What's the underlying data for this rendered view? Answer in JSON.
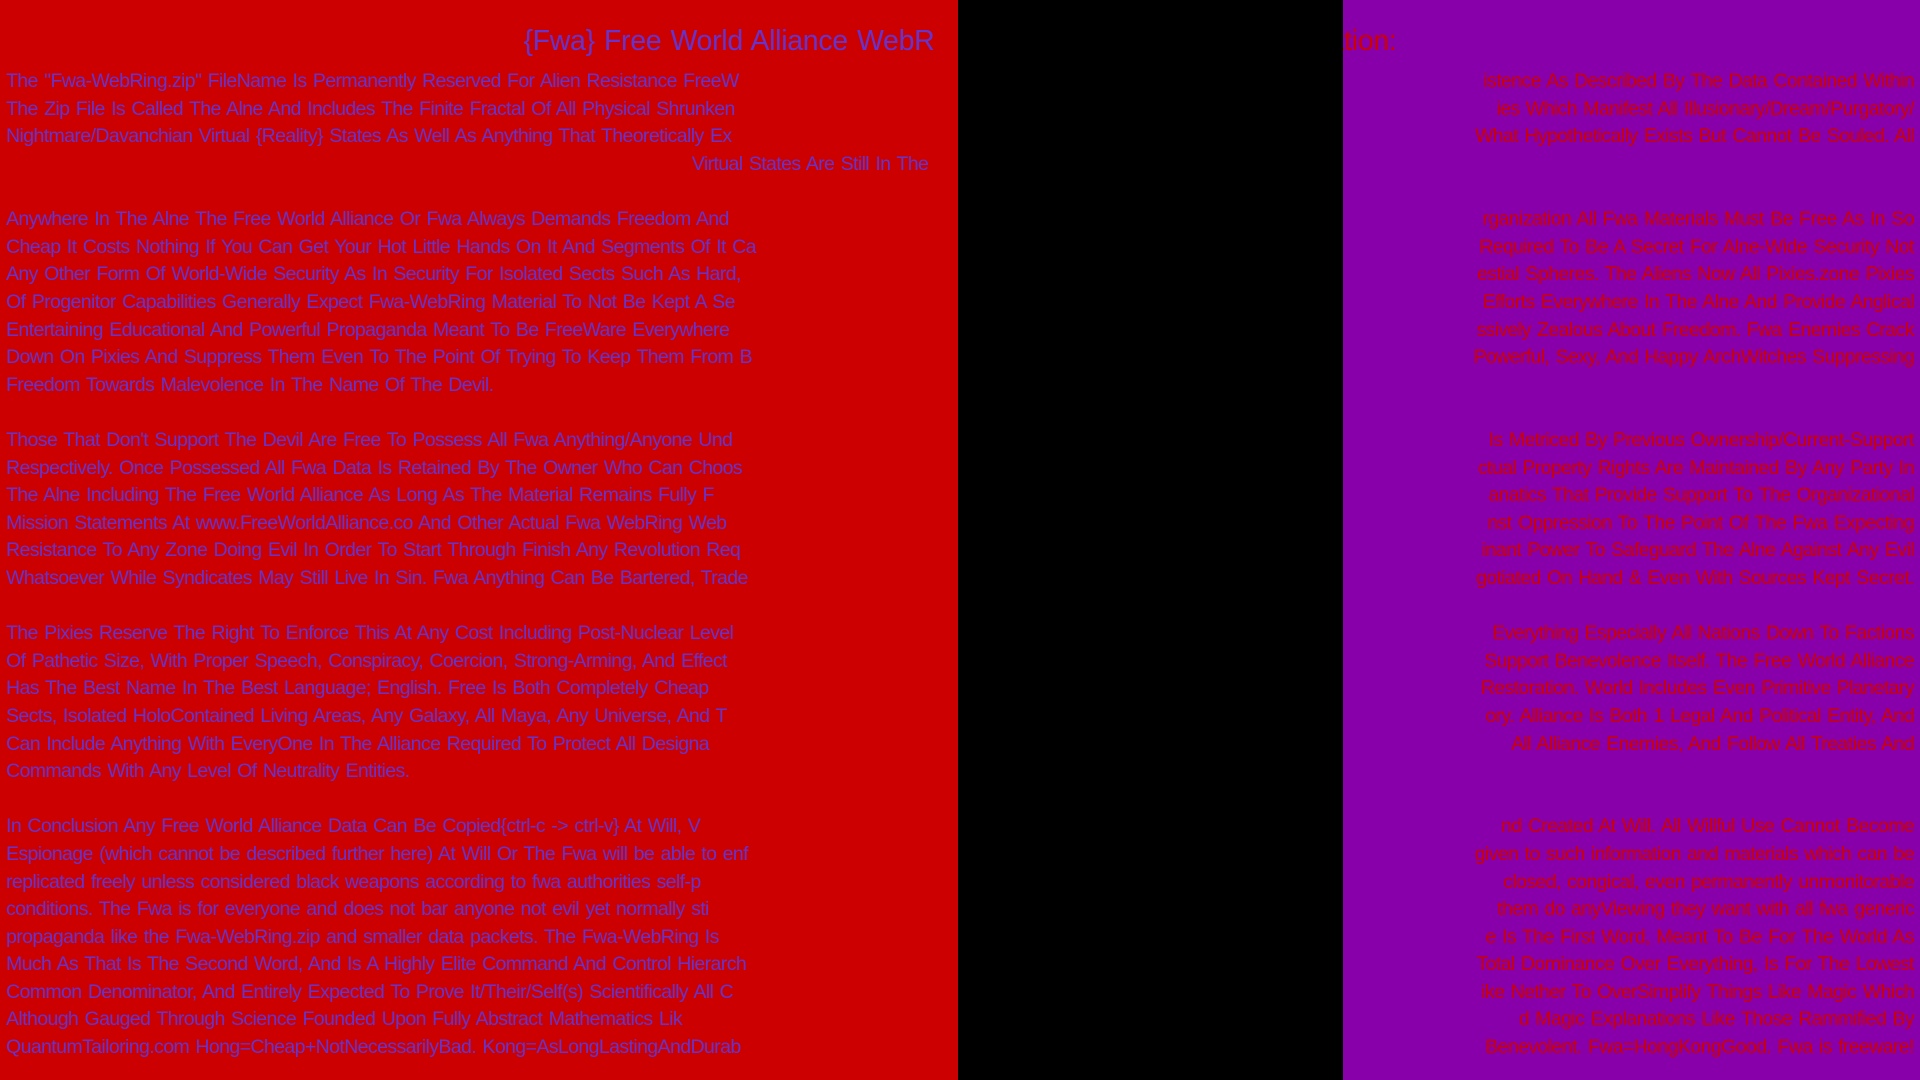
{
  "colors": {
    "left_bg": "#cc0000",
    "left_text": "#6633cc",
    "right_bg": "#8800aa",
    "right_text": "#cc0000",
    "overlay": "#000000"
  },
  "document": {
    "title": {
      "l": "{Fwa} Free World Alliance WebR",
      "r": "ration:",
      "c": true,
      "gap": 385
    },
    "paragraphs": [
      {
        "lines": [
          {
            "l": "The \"Fwa-WebRing.zip\" FileName Is Permanently Reserved For Alien Resistance FreeW",
            "r": "istence As Described By The Data Contained Within"
          },
          {
            "l": "The Zip File Is Called The Alne And Includes The Finite Fractal Of All Physical Shrunken",
            "r": "ies Which Manifest All Illusionary/Dream/Purgatory/"
          },
          {
            "l": "Nightmare/Davanchian Virtual {Reality} States As Well As Anything That Theoretically Ex",
            "r": "What Hypothetically Exists But Cannot Be Souled. All"
          },
          {
            "l": "Virtual States Are Still In The",
            "r": "",
            "c": true,
            "gap": 300
          }
        ]
      },
      {
        "lines": [
          {
            "l": "Anywhere In The Alne The Free World Alliance Or Fwa Always Demands Freedom And",
            "r": "rganization All Fwa Materials Must Be Free As In So"
          },
          {
            "l": "Cheap It Costs Nothing If You Can Get Your Hot Little Hands On It And Segments Of It Ca",
            "r": "Required To Be A Secret For Alne-Wide Security Not"
          },
          {
            "l": "Any Other Form Of World-Wide Security As In Security For Isolated Sects Such As Hard,",
            "r": "estial Spheres. The Aliens Now All Pixies.zone Pixies"
          },
          {
            "l": "Of Progenitor Capabilities Generally Expect Fwa-WebRing Material To Not Be Kept A Se",
            "r": "Efforts Everywhere In The Alne And Provide Anglical"
          },
          {
            "l": "Entertaining Educational And Powerful Propaganda Meant To Be FreeWare Everywhere",
            "r": "ssively Zealous About Freedom. Fwa Enemies Crack"
          },
          {
            "l": "Down On Pixies And Suppress Them Even To The Point Of Trying To Keep Them From B",
            "r": "Powerful, Sexy, And Happy ArchWitches Suppressing"
          },
          {
            "l": "Freedom Towards Malevolence In The Name Of The Devil.",
            "r": ""
          }
        ]
      },
      {
        "lines": [
          {
            "l": "Those That Don't Support The Devil Are Free To Possess All Fwa Anything/Anyone Und",
            "r": "Is Metriced By Previous Ownership/Current-Support"
          },
          {
            "l": "Respectively. Once Possessed All Fwa Data Is Retained By The Owner Who Can Choos",
            "r": "ctual Property Rights Are Maintained By Any Party In"
          },
          {
            "l": "The Alne Including The Free World Alliance As Long As The Material Remains Fully F",
            "r": "anatics That Provide Support To The Organizational"
          },
          {
            "l": "Mission Statements At www.FreeWorldAlliance.co And Other Actual Fwa WebRing Web",
            "r": "nst Oppression To The Point Of The Fwa Expecting"
          },
          {
            "l": "Resistance To Any Zone Doing Evil In Order To Start Through Finish Any Revolution Req",
            "r": "inant Power To Safeguard The Alne Against Any Evil"
          },
          {
            "l": "Whatsoever While Syndicates May Still Live In Sin. Fwa Anything Can Be Bartered, Trade",
            "r": "gotiated On Hand & Even With Sources Kept Secret."
          }
        ]
      },
      {
        "lines": [
          {
            "l": "The Pixies Reserve The Right To Enforce This At Any Cost Including Post-Nuclear Level",
            "r": "Everything Especially All Nations Down To Factions"
          },
          {
            "l": "Of Pathetic Size, With Proper Speech, Conspiracy, Coercion, Strong-Arming, And Effect",
            "r": "Support Benevolence Itself. The Free World Alliance"
          },
          {
            "l": "Has The Best Name In The Best Language; English. Free Is Both Completely Cheap",
            "r": "Restoration. World Includes Even Primitive Planetary"
          },
          {
            "l": "Sects, Isolated HoloContained Living Areas, Any Galaxy, All Maya, Any Universe, And T",
            "r": "ory. Alliance Is Both 1 Legal And Political Entity, And"
          },
          {
            "l": "Can Include Anything With EveryOne In The Alliance Required To Protect All Designa",
            "r": "All Alliance Enemies, And Follow All Treaties And"
          },
          {
            "l": "Commands With Any Level Of Neutrality Entities.",
            "r": ""
          }
        ]
      },
      {
        "lines": [
          {
            "l": "In Conclusion Any Free World Alliance Data Can Be Copied{ctrl-c -> ctrl-v} At Will, V",
            "r": "nd Created At Will. All Willful Use Cannot Become"
          },
          {
            "l": "Espionage (which cannot be described further here) At Will Or The Fwa will be able to enf",
            "r": "given to such information and materials which can be"
          },
          {
            "l": "replicated freely unless considered black weapons according to fwa authorities self-p",
            "r": "closed, congical, even permanently unmonitorable"
          },
          {
            "l": "conditions. The Fwa is for everyone and does not bar anyone not evil yet normally sti",
            "r": "them do anyViewing they want with all fwa generic"
          },
          {
            "l": "propaganda like the Fwa-WebRing.zip and smaller data packets. The Fwa-WebRing Is",
            "r": "e Is The First Word, Meant To Be For The World As"
          },
          {
            "l": "Much As That Is The Second Word, And Is A Highly Elite Command And Control Hierarch",
            "r": "Total Dominance Over Everything, Is For The Lowest"
          },
          {
            "l": "Common Denominator, And Entirely Expected To Prove It/Their/Self(s) Scientifically All C",
            "r": "ike Nether To OverSimplify Things Like Magic Which"
          },
          {
            "l": "Although Gauged Through Science Founded Upon Fully Abstract Mathematics Lik",
            "r": "d Magic Explanations Like Those Rammified By"
          },
          {
            "l": "QuantumTailoring.com Hong=Cheap+NotNecessarilyBad. Kong=AsLongLastingAndDurab",
            "r": "Benevolent. Fwa=HongKongGood. Fwa is freeware!"
          }
        ]
      }
    ]
  }
}
